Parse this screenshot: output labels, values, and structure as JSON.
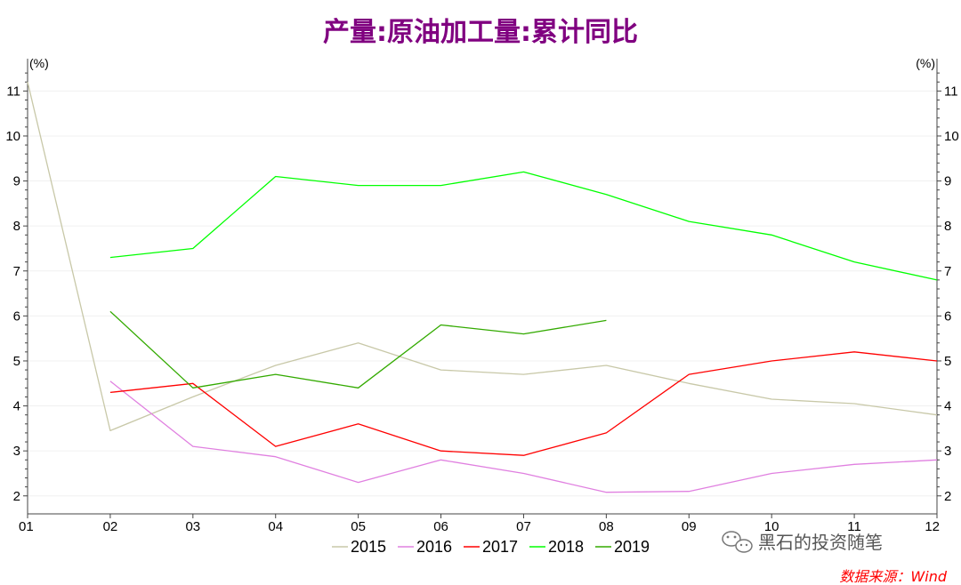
{
  "chart_data": {
    "type": "line",
    "title": "产量:原油加工量:累计同比",
    "y_unit_left": "(%)",
    "y_unit_right": "(%)",
    "categories": [
      "01",
      "02",
      "03",
      "04",
      "05",
      "06",
      "07",
      "08",
      "09",
      "10",
      "11",
      "12"
    ],
    "ylim": [
      1.6,
      11.6
    ],
    "y_ticks": [
      2,
      3,
      4,
      5,
      6,
      7,
      8,
      9,
      10,
      11
    ],
    "grid": true,
    "legend_position": "bottom",
    "series": [
      {
        "name": "2015",
        "color": "#c8c8a8",
        "values": [
          11.2,
          3.45,
          4.2,
          4.9,
          5.4,
          4.8,
          4.7,
          4.9,
          4.5,
          4.15,
          4.05,
          3.8
        ]
      },
      {
        "name": "2016",
        "color": "#e080e0",
        "values": [
          null,
          4.55,
          3.1,
          2.87,
          2.3,
          2.8,
          2.5,
          2.08,
          2.1,
          2.5,
          2.7,
          2.8
        ]
      },
      {
        "name": "2017",
        "color": "#ff0000",
        "values": [
          null,
          4.3,
          4.5,
          3.1,
          3.6,
          3.0,
          2.9,
          3.4,
          4.7,
          5.0,
          5.2,
          5.0
        ]
      },
      {
        "name": "2018",
        "color": "#00ff00",
        "values": [
          null,
          7.3,
          7.5,
          9.1,
          8.9,
          8.9,
          9.2,
          8.7,
          8.1,
          7.8,
          7.2,
          6.8
        ]
      },
      {
        "name": "2019",
        "color": "#33aa00",
        "values": [
          null,
          6.1,
          4.4,
          4.7,
          4.4,
          5.8,
          5.6,
          5.9,
          null,
          null,
          null,
          null
        ]
      }
    ]
  },
  "footer": {
    "source": "数据来源：Wind",
    "watermark": "黑石的投资随笔"
  }
}
